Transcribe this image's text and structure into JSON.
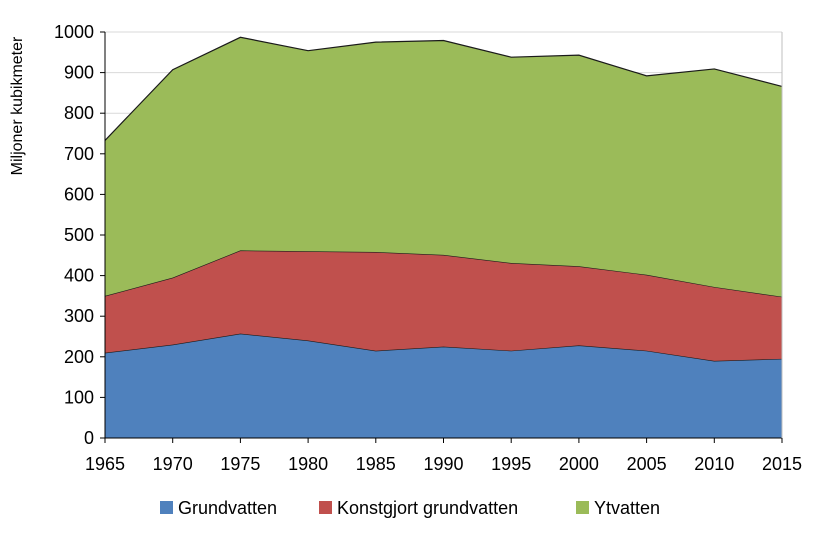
{
  "chart_data": {
    "type": "area",
    "stacked": true,
    "x": [
      1965,
      1970,
      1975,
      1980,
      1985,
      1990,
      1995,
      2000,
      2005,
      2010,
      2015
    ],
    "series": [
      {
        "name": "Grundvatten",
        "color": "#4f81bd",
        "values": [
          210,
          230,
          257,
          240,
          215,
          225,
          215,
          228,
          215,
          190,
          195
        ]
      },
      {
        "name": "Konstgjort grundvatten",
        "color": "#c0504d",
        "values": [
          140,
          165,
          205,
          220,
          243,
          226,
          216,
          195,
          187,
          182,
          153
        ]
      },
      {
        "name": "Ytvatten",
        "color": "#9bbb59",
        "values": [
          383,
          512,
          525,
          494,
          517,
          528,
          507,
          520,
          490,
          537,
          518
        ]
      }
    ],
    "title": "",
    "xlabel": "",
    "ylabel": "Miljoner kubikmeter",
    "ylim": [
      0,
      1000
    ],
    "yticks": [
      0,
      100,
      200,
      300,
      400,
      500,
      600,
      700,
      800,
      900,
      1000
    ],
    "grid": "horizontal",
    "legend": "bottom-center"
  }
}
